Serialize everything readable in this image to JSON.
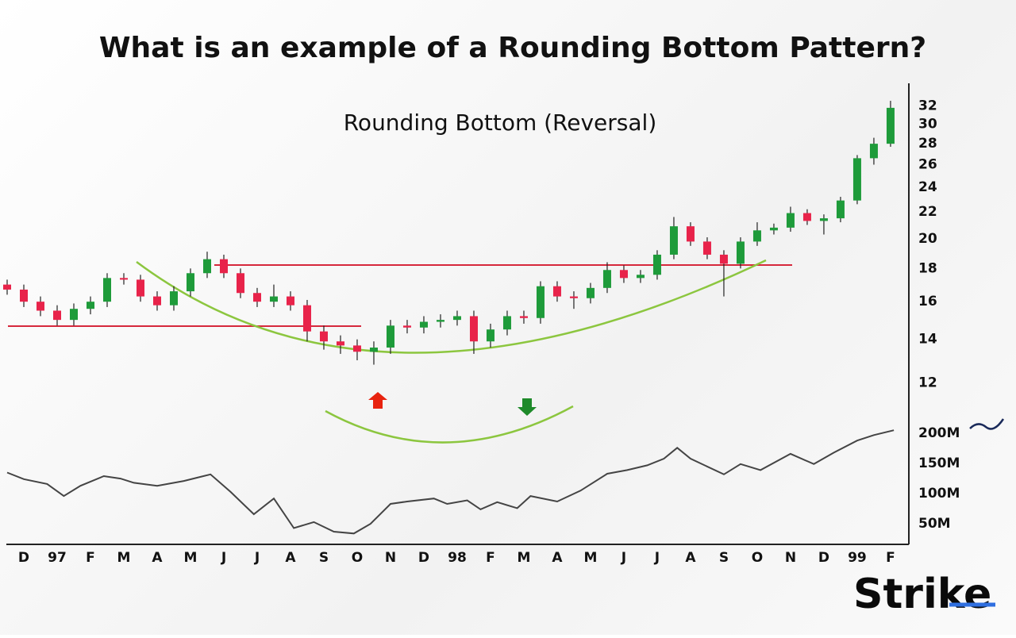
{
  "chart_data": [
    {
      "type": "candlestick",
      "title": "What is an example of a Rounding Bottom Pattern?",
      "subtitle": "Rounding Bottom (Reversal)",
      "x": [
        -0.5,
        0,
        0.5,
        1,
        1.5,
        2,
        2.5,
        3,
        3.5,
        4,
        4.5,
        5,
        5.5,
        6,
        6.5,
        7,
        7.5,
        8,
        8.5,
        9,
        9.5,
        10,
        10.5,
        11,
        11.5,
        12,
        12.5,
        13,
        13.5,
        14,
        14.5,
        15,
        15.5,
        16,
        16.5,
        17,
        17.5,
        18,
        18.5,
        19,
        19.5,
        20,
        20.5,
        21,
        21.5,
        22,
        22.5,
        23,
        23.5,
        24,
        24.5,
        25,
        25.5,
        26
      ],
      "open": [
        17.0,
        16.7,
        16.0,
        15.5,
        15.0,
        15.6,
        16.0,
        17.4,
        17.3,
        16.3,
        15.8,
        16.6,
        17.7,
        18.6,
        17.7,
        16.5,
        16.0,
        16.3,
        15.8,
        14.4,
        13.9,
        13.7,
        13.4,
        13.6,
        14.7,
        14.6,
        14.9,
        15.0,
        15.2,
        13.9,
        14.5,
        15.2,
        15.1,
        16.9,
        16.3,
        16.2,
        16.8,
        17.9,
        17.4,
        17.6,
        18.9,
        20.9,
        19.8,
        18.9,
        18.3,
        19.8,
        20.6,
        20.8,
        21.9,
        21.3,
        21.5,
        22.9,
        26.6,
        28.0
      ],
      "high": [
        17.3,
        17.0,
        16.3,
        15.8,
        15.9,
        16.3,
        17.7,
        17.7,
        17.6,
        16.6,
        16.9,
        18.0,
        19.1,
        18.9,
        18.0,
        16.8,
        17.0,
        16.6,
        16.1,
        14.7,
        14.2,
        14.0,
        13.9,
        15.0,
        15.0,
        15.2,
        15.3,
        15.5,
        15.5,
        14.8,
        15.5,
        15.5,
        17.2,
        17.2,
        16.6,
        17.1,
        18.4,
        18.2,
        17.9,
        19.2,
        21.6,
        21.2,
        20.1,
        19.2,
        20.1,
        21.2,
        21.1,
        22.4,
        22.2,
        21.8,
        23.2,
        26.9,
        28.6,
        32.6
      ],
      "low": [
        16.4,
        15.7,
        15.2,
        14.7,
        14.7,
        15.3,
        15.7,
        17.0,
        16.0,
        15.5,
        15.5,
        16.3,
        17.4,
        17.4,
        16.2,
        15.7,
        15.7,
        15.5,
        13.9,
        13.5,
        13.3,
        13.0,
        12.8,
        13.3,
        14.3,
        14.3,
        14.6,
        14.7,
        13.3,
        13.6,
        14.2,
        14.8,
        14.8,
        16.0,
        15.6,
        15.9,
        16.5,
        17.1,
        17.1,
        17.3,
        18.6,
        19.5,
        18.6,
        16.3,
        18.0,
        19.5,
        20.3,
        20.5,
        21.0,
        20.3,
        21.2,
        22.6,
        26.0,
        27.7
      ],
      "close": [
        16.7,
        16.0,
        15.5,
        15.0,
        15.6,
        16.0,
        17.4,
        17.3,
        16.3,
        15.8,
        16.6,
        17.7,
        18.6,
        17.7,
        16.5,
        16.0,
        16.3,
        15.8,
        14.4,
        13.9,
        13.7,
        13.4,
        13.6,
        14.7,
        14.6,
        14.9,
        15.0,
        15.2,
        13.9,
        14.5,
        15.2,
        15.1,
        16.9,
        16.3,
        16.2,
        16.8,
        17.9,
        17.4,
        17.6,
        18.9,
        20.9,
        19.8,
        18.9,
        18.3,
        19.8,
        20.6,
        20.8,
        21.9,
        21.3,
        21.5,
        22.9,
        26.6,
        28.0,
        31.8
      ],
      "up_color": "#1e9b3a",
      "down_color": "#e8234a",
      "xlim": [
        -0.5,
        26.43
      ],
      "xticks": [
        {
          "value": 0,
          "label": "D"
        },
        {
          "value": 1,
          "label": "97"
        },
        {
          "value": 2,
          "label": "F"
        },
        {
          "value": 3,
          "label": "M"
        },
        {
          "value": 4,
          "label": "A"
        },
        {
          "value": 5,
          "label": "M"
        },
        {
          "value": 6,
          "label": "J"
        },
        {
          "value": 7,
          "label": "J"
        },
        {
          "value": 8,
          "label": "A"
        },
        {
          "value": 9,
          "label": "S"
        },
        {
          "value": 10,
          "label": "O"
        },
        {
          "value": 11,
          "label": "N"
        },
        {
          "value": 12,
          "label": "D"
        },
        {
          "value": 13,
          "label": "98"
        },
        {
          "value": 14,
          "label": "F"
        },
        {
          "value": 15,
          "label": "M"
        },
        {
          "value": 16,
          "label": "A"
        },
        {
          "value": 17,
          "label": "M"
        },
        {
          "value": 18,
          "label": "J"
        },
        {
          "value": 19,
          "label": "J"
        },
        {
          "value": 20,
          "label": "A"
        },
        {
          "value": 21,
          "label": "S"
        },
        {
          "value": 22,
          "label": "O"
        },
        {
          "value": 23,
          "label": "N"
        },
        {
          "value": 24,
          "label": "D"
        },
        {
          "value": 25,
          "label": "99"
        },
        {
          "value": 26,
          "label": "F"
        }
      ],
      "ylim": [
        10.5,
        34.2
      ],
      "log_y": true,
      "yticks": [
        12,
        14,
        16,
        18,
        20,
        22,
        24,
        26,
        28,
        30,
        32
      ]
    },
    {
      "type": "line",
      "x": [
        -0.5,
        0,
        0.7,
        1.2,
        1.7,
        2.4,
        2.9,
        3.3,
        4.0,
        4.8,
        5.6,
        6.2,
        6.9,
        7.5,
        8.1,
        8.7,
        9.3,
        9.9,
        10.4,
        11.0,
        11.5,
        12.3,
        12.7,
        13.3,
        13.7,
        14.2,
        14.8,
        15.2,
        16.0,
        16.7,
        17.5,
        18.1,
        18.7,
        19.2,
        19.6,
        20.0,
        21.0,
        21.5,
        22.1,
        23.0,
        23.7,
        24.3,
        25.0,
        25.5,
        26.1
      ],
      "values": [
        135,
        124,
        116,
        96,
        113,
        129,
        125,
        118,
        113,
        121,
        132,
        103,
        66,
        92,
        43,
        53,
        37,
        34,
        50,
        83,
        87,
        92,
        83,
        89,
        74,
        86,
        76,
        96,
        87,
        105,
        133,
        139,
        147,
        158,
        176,
        158,
        132,
        149,
        139,
        166,
        149,
        168,
        188,
        197,
        205
      ],
      "color": "#444444",
      "ylim": [
        16,
        250
      ],
      "yticks": [
        {
          "value": 50,
          "label": "50M"
        },
        {
          "value": 100,
          "label": "100M"
        },
        {
          "value": 150,
          "label": "150M"
        },
        {
          "value": 200,
          "label": "200M"
        }
      ]
    }
  ],
  "logo": "Strike"
}
